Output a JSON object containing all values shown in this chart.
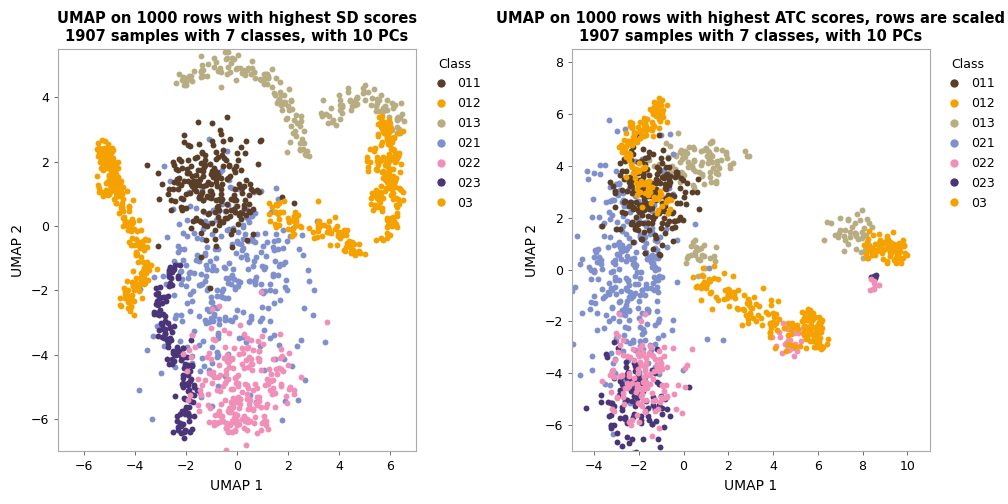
{
  "title1": "UMAP on 1000 rows with highest SD scores\n1907 samples with 7 classes, with 10 PCs",
  "title2": "UMAP on 1000 rows with highest ATC scores, rows are scaled\n1907 samples with 7 classes, with 10 PCs",
  "xlabel": "UMAP 1",
  "ylabel": "UMAP 2",
  "classes": [
    "011",
    "012",
    "013",
    "021",
    "022",
    "023",
    "03"
  ],
  "col": {
    "011": "#5a3e28",
    "012": "#f5a200",
    "013": "#b8ad82",
    "021": "#8090cc",
    "022": "#f090b8",
    "023": "#4a3578",
    "03": "#f5a200"
  },
  "plot1_xlim": [
    -7,
    7
  ],
  "plot1_ylim": [
    -7,
    5.5
  ],
  "plot1_xticks": [
    -6,
    -4,
    -2,
    0,
    2,
    4,
    6
  ],
  "plot1_yticks": [
    -6,
    -4,
    -2,
    0,
    2,
    4
  ],
  "plot2_xlim": [
    -5,
    11
  ],
  "plot2_ylim": [
    -7,
    8.5
  ],
  "plot2_xticks": [
    -4,
    -2,
    0,
    2,
    4,
    6,
    8,
    10
  ],
  "plot2_yticks": [
    -6,
    -4,
    -2,
    0,
    2,
    4,
    6,
    8
  ],
  "point_size": 18,
  "alpha": 1.0,
  "bg": "#ffffff",
  "legend_title": "Class",
  "title_fontsize": 10.5,
  "axis_fontsize": 10,
  "tick_fontsize": 9
}
